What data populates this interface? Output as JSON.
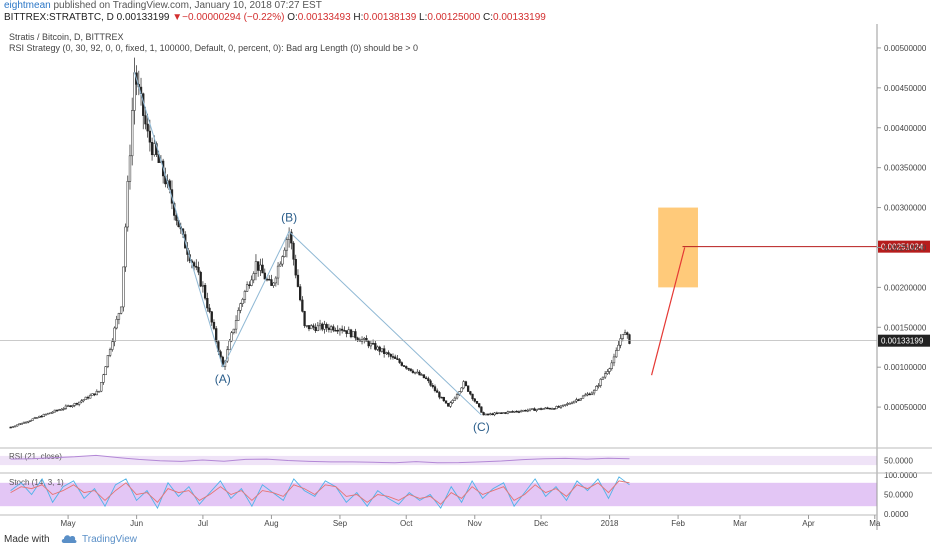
{
  "header": {
    "author": "eightmean",
    "published_text": "published on TradingView.com, January 10, 2018 07:27 EST",
    "symbol": "BITTREX:STRATBTC, D",
    "last_price": "0.00133199",
    "change_arrow": "▼",
    "change": "−0.00000294 (−0.22%)",
    "open_label": "O:",
    "open": "0.00133493",
    "high_label": "H:",
    "high": "0.00138139",
    "low_label": "L:",
    "low": "0.00125000",
    "close_label": "C:",
    "close": "0.00133199"
  },
  "legend": {
    "title": "Stratis / Bitcoin, D, BITTREX",
    "strategy": "RSI Strategy (0, 30, 92, 0, 0, fixed, 1, 100000, Default, 0, percent, 0): Bad arg Length (0) should be > 0"
  },
  "colors": {
    "up": "#222222",
    "down": "#222222",
    "wave": "#8fb8d4",
    "zone": "#ffc46b",
    "target": "#b71c1c",
    "arrow": "#e53935",
    "rsi": "#b388d6",
    "rsi_band": "#efe3f7",
    "stoch_k": "#4fb3e8",
    "stoch_d": "#e57373",
    "stoch_band": "#e3c6f5"
  },
  "footer": {
    "made_with": "Made with",
    "brand": "TradingView"
  },
  "chart_data": [
    {
      "type": "candlestick",
      "title": "Stratis / Bitcoin, D, BITTREX",
      "x_ticks": [
        "May",
        "Jun",
        "Jul",
        "Aug",
        "Sep",
        "Oct",
        "Nov",
        "Dec",
        "2018",
        "Feb",
        "Mar",
        "Apr",
        "Ma"
      ],
      "y_ticks": [
        "0.00500000",
        "0.00450000",
        "0.00400000",
        "0.00350000",
        "0.00300000",
        "0.00250000",
        "0.00200000",
        "0.00150000",
        "0.00100000",
        "0.00050000"
      ],
      "y_tick_values": [
        0.005,
        0.0045,
        0.004,
        0.0035,
        0.003,
        0.0025,
        0.002,
        0.0015,
        0.001,
        0.0005
      ],
      "ylim": [
        0.0,
        0.0053
      ],
      "price_path": [
        [
          "2017-04-05",
          0.00025
        ],
        [
          "2017-04-20",
          0.0004
        ],
        [
          "2017-05-05",
          0.00055
        ],
        [
          "2017-05-15",
          0.0007
        ],
        [
          "2017-05-25",
          0.0018
        ],
        [
          "2017-05-31",
          0.0047
        ],
        [
          "2017-06-06",
          0.0039
        ],
        [
          "2017-06-14",
          0.00335
        ],
        [
          "2017-06-22",
          0.0026
        ],
        [
          "2017-07-01",
          0.002
        ],
        [
          "2017-07-10",
          0.001
        ],
        [
          "2017-07-18",
          0.0018
        ],
        [
          "2017-07-25",
          0.0023
        ],
        [
          "2017-08-01",
          0.002
        ],
        [
          "2017-08-09",
          0.0027
        ],
        [
          "2017-08-16",
          0.0015
        ],
        [
          "2017-09-01",
          0.0015
        ],
        [
          "2017-09-20",
          0.0012
        ],
        [
          "2017-10-10",
          0.00085
        ],
        [
          "2017-10-20",
          0.0005
        ],
        [
          "2017-10-27",
          0.0008
        ],
        [
          "2017-11-05",
          0.0004
        ],
        [
          "2017-11-20",
          0.00045
        ],
        [
          "2017-12-10",
          0.0005
        ],
        [
          "2017-12-25",
          0.0007
        ],
        [
          "2018-01-03",
          0.0011
        ],
        [
          "2018-01-07",
          0.00145
        ],
        [
          "2018-01-10",
          0.00133
        ]
      ],
      "annotations": [
        {
          "label": "(A)",
          "date": "2017-07-10",
          "value": 0.001
        },
        {
          "label": "(B)",
          "date": "2017-08-09",
          "value": 0.0027
        },
        {
          "label": "(C)",
          "date": "2017-11-04",
          "value": 0.0004
        }
      ],
      "wave_lines": [
        [
          "2017-05-31",
          0.0047
        ],
        [
          "2017-07-10",
          0.001
        ],
        [
          "2017-08-09",
          0.0027
        ],
        [
          "2017-11-04",
          0.0004
        ]
      ],
      "target_zone": {
        "date_from": "2018-01-23",
        "date_to": "2018-02-10",
        "value_from": 0.002,
        "value_to": 0.003
      },
      "target_line": {
        "value": 0.00251024,
        "label": "0.00251024",
        "date_from": "2018-02-03",
        "date_to": "2018-04-30"
      },
      "projection_arrow": [
        [
          "2018-01-20",
          0.0009
        ],
        [
          "2018-02-04",
          0.0025
        ]
      ],
      "last_price": {
        "value": 0.00133199,
        "label": "0.00133199"
      }
    },
    {
      "type": "line",
      "title": "RSI (21, close)",
      "band": [
        30,
        70
      ],
      "y_ticks": [
        "50.0000"
      ],
      "y_tick_values": [
        50
      ],
      "ylim": [
        0,
        100
      ],
      "series": [
        {
          "values": [
            56,
            58,
            62,
            66,
            72,
            63,
            55,
            49,
            46,
            52,
            47,
            55,
            56,
            50,
            46,
            44,
            44,
            42,
            40,
            45,
            40,
            41,
            44,
            48,
            54,
            58,
            59,
            56,
            60,
            58
          ]
        }
      ]
    },
    {
      "type": "line",
      "title": "Stoch (14, 3, 1)",
      "band": [
        20,
        80
      ],
      "y_ticks": [
        "100.0000",
        "50.0000",
        "0.0000"
      ],
      "y_tick_values": [
        100,
        50,
        0
      ],
      "ylim": [
        0,
        100
      ],
      "series": [
        {
          "values": [
            60,
            80,
            50,
            90,
            30,
            70,
            85,
            40,
            65,
            20,
            75,
            90,
            35,
            60,
            15,
            80,
            45,
            70,
            25,
            55,
            85,
            40,
            65,
            20,
            75,
            55,
            35,
            90,
            60,
            45,
            85,
            70,
            30,
            55,
            20,
            60,
            40,
            25,
            55,
            35,
            50,
            15,
            70,
            30,
            85,
            40,
            65,
            80,
            20,
            55,
            90,
            45,
            70,
            35,
            85,
            60,
            90,
            40,
            95,
            75
          ]
        },
        {
          "values": [
            55,
            70,
            65,
            75,
            50,
            60,
            75,
            55,
            60,
            35,
            60,
            80,
            50,
            55,
            30,
            65,
            55,
            60,
            35,
            50,
            70,
            50,
            60,
            35,
            60,
            55,
            45,
            75,
            65,
            50,
            75,
            70,
            45,
            50,
            30,
            50,
            45,
            35,
            50,
            40,
            45,
            25,
            55,
            40,
            70,
            50,
            60,
            70,
            35,
            50,
            75,
            55,
            65,
            45,
            75,
            65,
            80,
            55,
            85,
            80
          ]
        }
      ]
    }
  ]
}
